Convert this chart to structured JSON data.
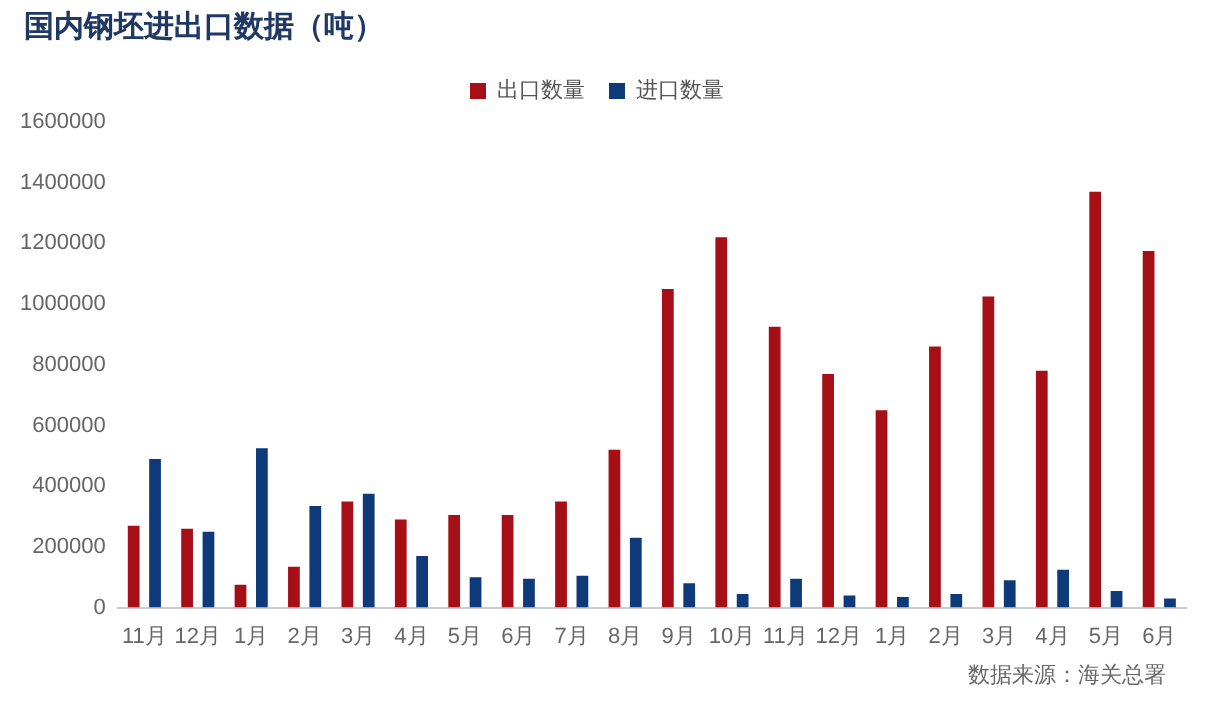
{
  "chart_data": {
    "type": "bar",
    "title": "国内钢坯进出口数据（吨）",
    "categories": [
      "11月",
      "12月",
      "1月",
      "2月",
      "3月",
      "4月",
      "5月",
      "6月",
      "7月",
      "8月",
      "9月",
      "10月",
      "11月",
      "12月",
      "1月",
      "2月",
      "3月",
      "4月",
      "5月",
      "6月"
    ],
    "series": [
      {
        "name": "出口数量",
        "color": "#a50f15",
        "values": [
          270000,
          260000,
          75000,
          135000,
          350000,
          290000,
          305000,
          305000,
          350000,
          520000,
          1050000,
          1220000,
          925000,
          770000,
          650000,
          860000,
          1025000,
          780000,
          1370000,
          1175000
        ]
      },
      {
        "name": "进口数量",
        "color": "#0e3a7a",
        "values": [
          490000,
          250000,
          525000,
          335000,
          375000,
          170000,
          100000,
          95000,
          105000,
          230000,
          80000,
          45000,
          95000,
          40000,
          35000,
          45000,
          90000,
          125000,
          55000,
          30000
        ]
      }
    ],
    "ylim": [
      0,
      1600000
    ],
    "yticks": [
      0,
      200000,
      400000,
      600000,
      800000,
      1000000,
      1200000,
      1400000,
      1600000
    ],
    "grid": false,
    "legend": "top",
    "annotations": [
      "数据来源：海关总署"
    ]
  }
}
